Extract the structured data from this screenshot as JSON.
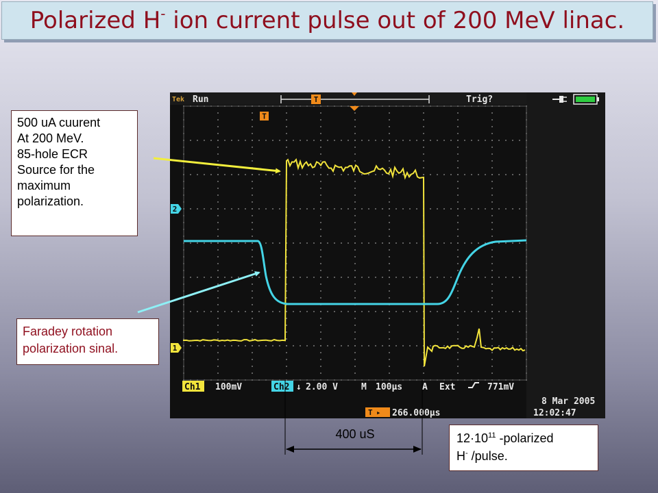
{
  "title": {
    "prefix": "Polarized H",
    "superscript": "-",
    "suffix": " ion current pulse out of 200 MeV linac."
  },
  "scope": {
    "status_left": "Run",
    "status_tek": "Tek",
    "trigger_status": "Trig?",
    "ch1_label": "Ch1",
    "ch1_scale": "100mV",
    "ch2_label": "Ch2",
    "ch2_scale": "2.00 V",
    "timebase_label": "M",
    "timebase": "100µs",
    "trigger_source_label": "A",
    "trigger_source": "Ext",
    "trigger_level": "771mV",
    "trigger_position": "266.000µs",
    "date": "8 Mar 2005",
    "time": "12:02:47",
    "marker_1": "1",
    "marker_2": "2",
    "marker_t": "T",
    "colors": {
      "ch1": "#f2e43c",
      "ch2": "#44d4e6",
      "marker": "#f08a1a",
      "grid": "#7a7a7a"
    }
  },
  "annotations": {
    "beam_note": [
      "500 uA cuurent",
      "At 200 MeV.",
      "85-hole ECR",
      "Source for the",
      "maximum",
      "polarization."
    ],
    "faraday_note": [
      "Faradey rotation",
      "polarization sinal."
    ],
    "pulse_width": "400 uS",
    "intensity_note": {
      "line1_base": "12·10",
      "line1_exp": "11",
      "line1_rest": " -polarized",
      "line2_base": "H",
      "line2_sup": "-",
      "line2_rest": " /pulse."
    },
    "arrow_colors": {
      "beam": "#f2ee3c",
      "faraday": "#8ef0f6"
    }
  }
}
